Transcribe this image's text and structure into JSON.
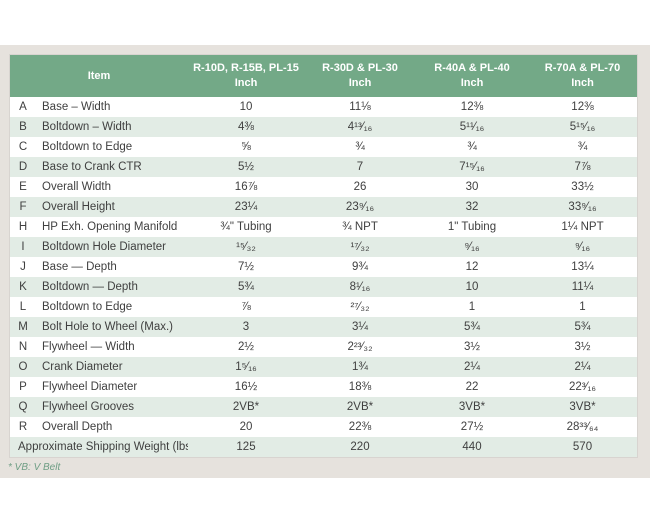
{
  "table": {
    "header": {
      "item_label": "Item",
      "unit_label": "Inch",
      "columns": [
        {
          "models": "R-10D, R-15B, PL-15",
          "unit": "Inch"
        },
        {
          "models": "R-30D & PL-30",
          "unit": "Inch"
        },
        {
          "models": "R-40A & PL-40",
          "unit": "Inch"
        },
        {
          "models": "R-70A & PL-70",
          "unit": "Inch"
        }
      ]
    },
    "rows": [
      {
        "letter": "A",
        "item": "Base – Width",
        "values": [
          "10",
          "11⅛",
          "12⅜",
          "12⅜"
        ]
      },
      {
        "letter": "B",
        "item": "Boltdown – Width",
        "values": [
          "4⅜",
          "4¹³⁄₁₆",
          "5¹¹⁄₁₆",
          "5¹⁵⁄₁₆"
        ]
      },
      {
        "letter": "C",
        "item": "Boltdown to Edge",
        "values": [
          "⅝",
          "¾",
          "¾",
          "¾"
        ]
      },
      {
        "letter": "D",
        "item": "Base to Crank CTR",
        "values": [
          "5½",
          "7",
          "7¹⁵⁄₁₆",
          "7⅞"
        ]
      },
      {
        "letter": "E",
        "item": "Overall Width",
        "values": [
          "16⅞",
          "26",
          "30",
          "33½"
        ]
      },
      {
        "letter": "F",
        "item": "Overall Height",
        "values": [
          "23¼",
          "23⁹⁄₁₆",
          "32",
          "33⁹⁄₁₆"
        ]
      },
      {
        "letter": "H",
        "item": "HP Exh. Opening Manifold",
        "values": [
          "¾\" Tubing",
          "¾ NPT",
          "1\" Tubing",
          "1¼ NPT"
        ]
      },
      {
        "letter": "I",
        "item": "Boltdown Hole Diameter",
        "values": [
          "¹⁵⁄₃₂",
          "¹⁷⁄₃₂",
          "⁹⁄₁₆",
          "⁹⁄₁₆"
        ]
      },
      {
        "letter": "J",
        "item": "Base — Depth",
        "values": [
          "7½",
          "9¾",
          "12",
          "13¼"
        ]
      },
      {
        "letter": "K",
        "item": "Boltdown — Depth",
        "values": [
          "5¾",
          "8¹⁄₁₆",
          "10",
          "11¼"
        ]
      },
      {
        "letter": "L",
        "item": "Boltdown to Edge",
        "values": [
          "⅞",
          "²⁷⁄₃₂",
          "1",
          "1"
        ]
      },
      {
        "letter": "M",
        "item": "Bolt Hole to Wheel (Max.)",
        "values": [
          "3",
          "3¼",
          "5¾",
          "5¾"
        ]
      },
      {
        "letter": "N",
        "item": "Flywheel — Width",
        "values": [
          "2½",
          "2²³⁄₃₂",
          "3½",
          "3½"
        ]
      },
      {
        "letter": "O",
        "item": "Crank Diameter",
        "values": [
          "1⁵⁄₁₆",
          "1¾",
          "2¼",
          "2¼"
        ]
      },
      {
        "letter": "P",
        "item": "Flywheel Diameter",
        "values": [
          "16½",
          "18⅜",
          "22",
          "22³⁄₁₆"
        ]
      },
      {
        "letter": "Q",
        "item": "Flywheel Grooves",
        "values": [
          "2VB*",
          "2VB*",
          "3VB*",
          "3VB*"
        ]
      },
      {
        "letter": "R",
        "item": "Overall Depth",
        "values": [
          "20",
          "22⅜",
          "27½",
          "28³³⁄₆₄"
        ]
      }
    ],
    "summary_row": {
      "label": "Approximate Shipping Weight (lbs.)",
      "values": [
        "125",
        "220",
        "440",
        "570"
      ]
    }
  },
  "footnote": "* VB: V Belt",
  "colors": {
    "header_green": "#73a987",
    "row_tint_green": "#e2ece5",
    "panel_beige": "#e6e2dd",
    "text": "#3f3f3f",
    "footnote_green": "#6f9e85"
  }
}
